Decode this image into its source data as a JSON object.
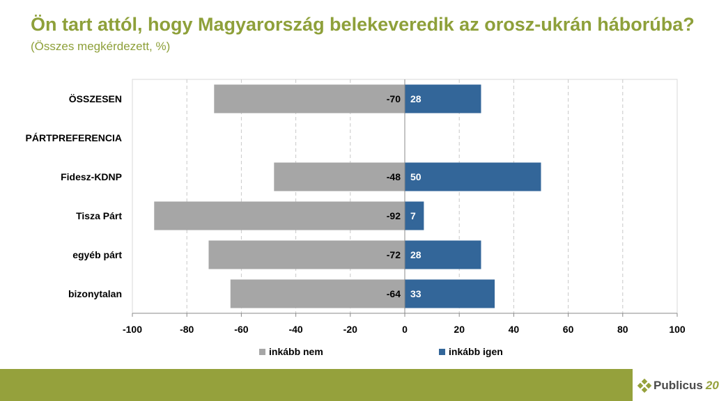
{
  "header": {
    "title": "Ön tart attól, hogy Magyarország belekeveredik az orosz-ukrán háborúba?",
    "subtitle": "(Összes megkérdezett, %)"
  },
  "brand": {
    "name": "Publicus",
    "suffix": "20"
  },
  "colors": {
    "nem": "#a6a6a6",
    "igen": "#336699",
    "accent": "#95a13c"
  },
  "chart_data": {
    "type": "bar",
    "orientation": "horizontal",
    "stacked": "diverging",
    "categories": [
      "ÖSSZESEN",
      "PÁRTPREFERENCIA",
      "Fidesz-KDNP",
      "Tisza Párt",
      "egyéb párt",
      "bizonytalan"
    ],
    "series": [
      {
        "name": "inkább nem",
        "color": "#a6a6a6",
        "values": [
          -70,
          null,
          -48,
          -92,
          -72,
          -64
        ]
      },
      {
        "name": "inkább igen",
        "color": "#336699",
        "values": [
          28,
          null,
          50,
          7,
          28,
          33
        ]
      }
    ],
    "xlim": [
      -100,
      100
    ],
    "xticks": [
      -100,
      -80,
      -60,
      -40,
      -20,
      0,
      20,
      40,
      60,
      80,
      100
    ],
    "grid": "vertical dashed",
    "legend": "bottom"
  }
}
